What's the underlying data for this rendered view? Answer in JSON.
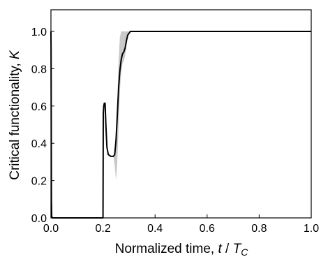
{
  "chart_data": {
    "type": "line",
    "title": "",
    "xlabel_text": "Normalized time, ",
    "xlabel_var": "t",
    "xlabel_sep": " / ",
    "xlabel_unit": "T",
    "xlabel_sub": "C",
    "ylabel_text": "Critical functionality, ",
    "ylabel_var": "K",
    "xlim": [
      0,
      1
    ],
    "ylim": [
      0,
      1.1
    ],
    "xticks": [
      "0.0",
      "0.2",
      "0.4",
      "0.6",
      "0.8",
      "1.0"
    ],
    "yticks": [
      "0.0",
      "0.2",
      "0.4",
      "0.6",
      "0.8",
      "1.0"
    ],
    "grid": false,
    "legend": "none",
    "colors": {
      "line": "#000000",
      "band": "#c9c9c9",
      "axis": "#000000"
    },
    "series": [
      {
        "values": [
          [
            0.0,
            1.0
          ],
          [
            0.0005,
            0.9
          ],
          [
            0.001,
            0.6
          ],
          [
            0.0015,
            0.3
          ],
          [
            0.002,
            0.1
          ],
          [
            0.003,
            0.01
          ],
          [
            0.005,
            0.0
          ],
          [
            0.199,
            0.0
          ],
          [
            0.2,
            0.0
          ],
          [
            0.201,
            0.56
          ],
          [
            0.203,
            0.6
          ],
          [
            0.205,
            0.615
          ],
          [
            0.208,
            0.615
          ],
          [
            0.211,
            0.5
          ],
          [
            0.215,
            0.38
          ],
          [
            0.22,
            0.34
          ],
          [
            0.23,
            0.33
          ],
          [
            0.24,
            0.33
          ],
          [
            0.245,
            0.34
          ],
          [
            0.25,
            0.42
          ],
          [
            0.255,
            0.55
          ],
          [
            0.26,
            0.7
          ],
          [
            0.265,
            0.79
          ],
          [
            0.27,
            0.85
          ],
          [
            0.275,
            0.88
          ],
          [
            0.28,
            0.89
          ],
          [
            0.285,
            0.91
          ],
          [
            0.29,
            0.95
          ],
          [
            0.295,
            0.98
          ],
          [
            0.3,
            0.99
          ],
          [
            0.305,
            1.0
          ],
          [
            1.0,
            1.0
          ]
        ],
        "band": [
          [
            0.24,
            0.33,
            0.33
          ],
          [
            0.245,
            0.28,
            0.36
          ],
          [
            0.25,
            0.2,
            0.45
          ],
          [
            0.255,
            0.3,
            0.62
          ],
          [
            0.26,
            0.5,
            0.85
          ],
          [
            0.265,
            0.68,
            0.97
          ],
          [
            0.27,
            0.78,
            1.0
          ],
          [
            0.275,
            0.83,
            1.0
          ],
          [
            0.28,
            0.84,
            1.0
          ],
          [
            0.285,
            0.87,
            1.0
          ],
          [
            0.29,
            0.93,
            1.0
          ],
          [
            0.295,
            0.97,
            1.0
          ],
          [
            0.3,
            0.99,
            1.0
          ],
          [
            0.305,
            1.0,
            1.0
          ]
        ]
      }
    ]
  }
}
